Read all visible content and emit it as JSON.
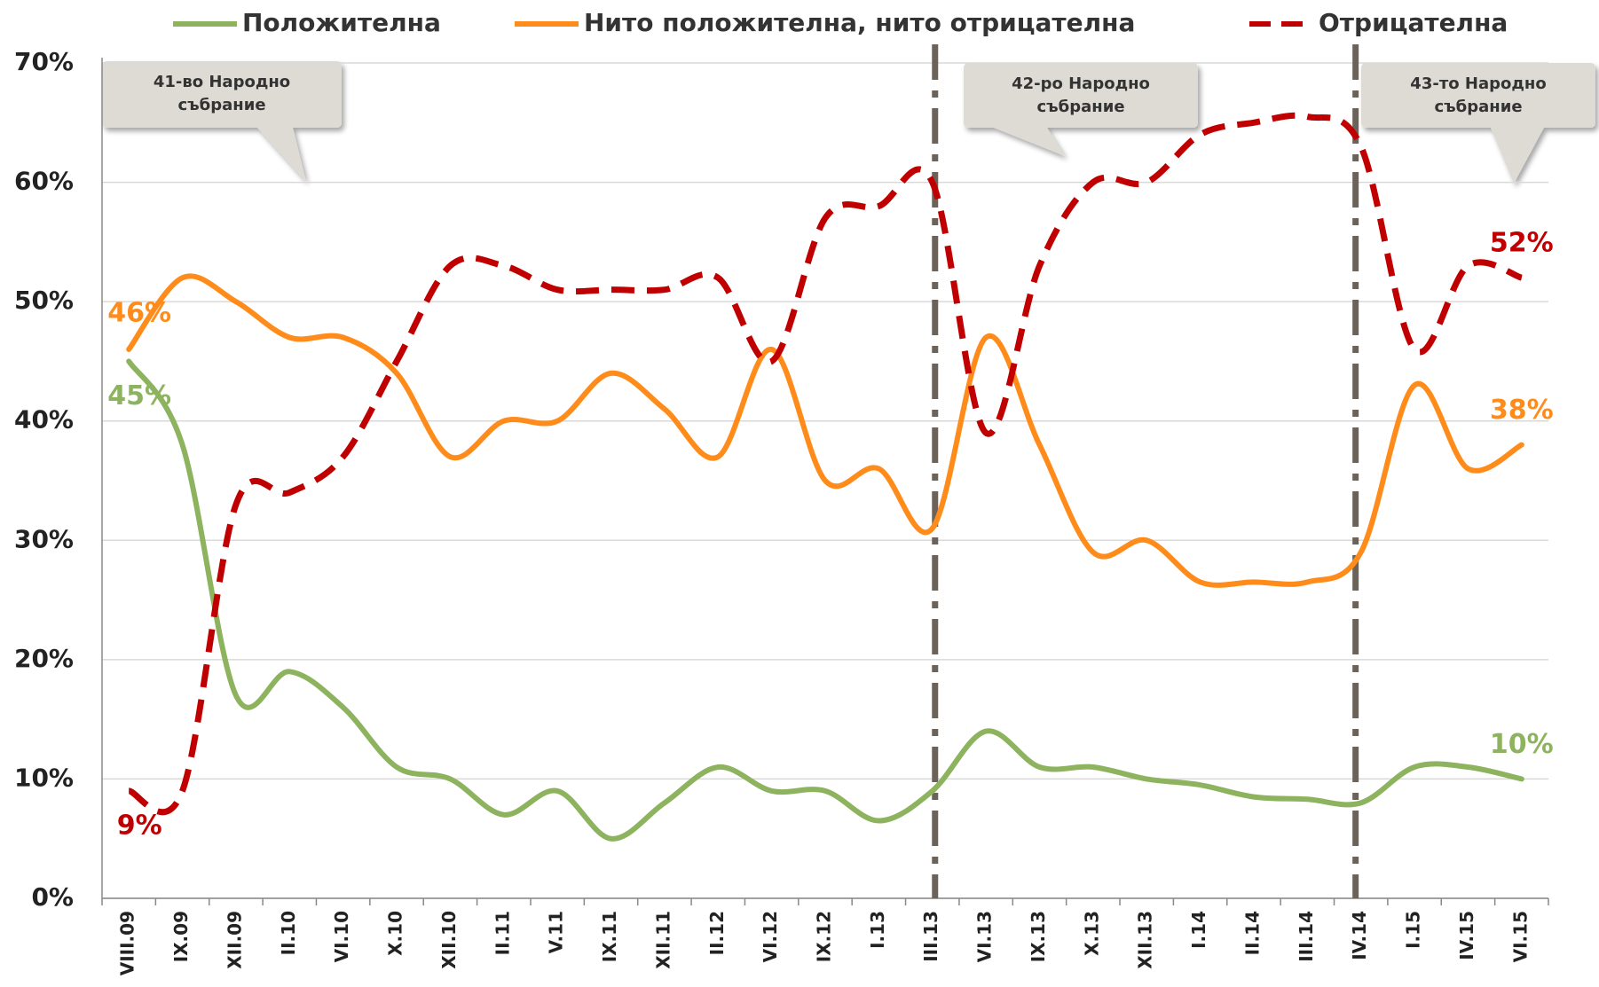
{
  "chart_data": {
    "type": "line",
    "categories": [
      "VIII.09",
      "IX.09",
      "XII.09",
      "II.10",
      "VI.10",
      "X.10",
      "XII.10",
      "II.11",
      "V.11",
      "IX.11",
      "XII.11",
      "II.12",
      "VI.12",
      "IX.12",
      "I.13",
      "III.13",
      "VI.13",
      "IX.13",
      "X.13",
      "XII.13",
      "I.14",
      "II.14",
      "III.14",
      "IV.14",
      "I.15",
      "IV.15",
      "VI.15"
    ],
    "series": [
      {
        "name": "Положителна",
        "color": "#8db35e",
        "dash": false,
        "values": [
          45,
          38,
          17,
          19,
          16,
          11,
          10,
          7,
          9,
          5,
          8,
          11,
          9,
          9,
          6.5,
          9,
          14,
          11,
          11,
          10,
          9.5,
          8.5,
          8.3,
          8,
          11,
          11,
          10
        ],
        "value_labels": [
          "45%",
          null,
          null,
          null,
          null,
          null,
          null,
          null,
          null,
          null,
          null,
          null,
          null,
          null,
          null,
          null,
          null,
          null,
          null,
          null,
          null,
          null,
          null,
          null,
          null,
          null,
          "10%"
        ]
      },
      {
        "name": "Нито положителна, нито отрицателна",
        "color": "#ff8c1a",
        "dash": false,
        "values": [
          46,
          52,
          50,
          47,
          47,
          44,
          37,
          40,
          40,
          44,
          41,
          37,
          46,
          35,
          36,
          31,
          47,
          38,
          29,
          30,
          26.5,
          26.5,
          26.5,
          29,
          43,
          36,
          38
        ],
        "value_labels": [
          "46%",
          null,
          null,
          null,
          null,
          null,
          null,
          null,
          null,
          null,
          null,
          null,
          null,
          null,
          null,
          null,
          null,
          null,
          null,
          null,
          null,
          null,
          null,
          null,
          null,
          null,
          "38%"
        ]
      },
      {
        "name": "Отрицателна",
        "color": "#c00000",
        "dash": true,
        "values": [
          9,
          9,
          33,
          34,
          37,
          45,
          53,
          53,
          51,
          51,
          51,
          52,
          45,
          57,
          58,
          60,
          39,
          53,
          60,
          60,
          64,
          65,
          65.5,
          63,
          46,
          53,
          52
        ],
        "value_labels": [
          "9%",
          null,
          null,
          null,
          null,
          null,
          null,
          null,
          null,
          null,
          null,
          null,
          null,
          null,
          null,
          null,
          null,
          null,
          null,
          null,
          null,
          null,
          null,
          null,
          null,
          null,
          "52%"
        ]
      }
    ],
    "ylim": [
      0,
      70
    ],
    "yticks": [
      {
        "value": 0,
        "label": "0%"
      },
      {
        "value": 10,
        "label": "10%"
      },
      {
        "value": 20,
        "label": "20%"
      },
      {
        "value": 30,
        "label": "30%"
      },
      {
        "value": 40,
        "label": "40%"
      },
      {
        "value": 50,
        "label": "50%"
      },
      {
        "value": 60,
        "label": "60%"
      },
      {
        "value": 70,
        "label": "70%"
      }
    ],
    "grid": true,
    "annotations": [
      {
        "lines": [
          "41-во Народно",
          "събрание"
        ]
      },
      {
        "lines": [
          "42-ро Народно",
          "събрание"
        ]
      },
      {
        "lines": [
          "43-то Народно",
          "събрание"
        ]
      }
    ]
  }
}
